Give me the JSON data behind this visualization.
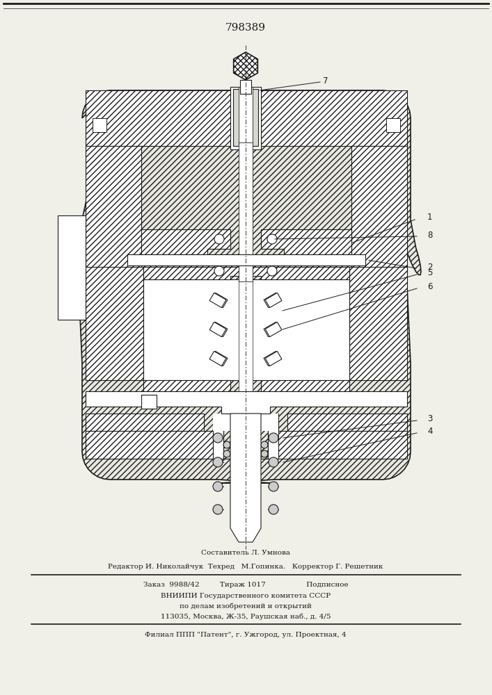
{
  "patent_number": "798389",
  "bg_color": "#f0efe8",
  "dc": "#1a1a1a",
  "footer_texts": [
    {
      "text": "Составитель Л. Умнова",
      "size": 7.5
    },
    {
      "text": "Редактор И. Николайчук  Техред   М.Гопинка.   Корректор Г. Решетник",
      "size": 7.5
    },
    {
      "text": "Заказ  9988/42         Тираж 1017                  Подписное",
      "size": 7.5
    },
    {
      "text": "ВНИИПИ Государственного комитета СССР",
      "size": 7.5
    },
    {
      "text": "по делам изобретений и открытий",
      "size": 7.5
    },
    {
      "text": "113035, Москва, Ж-35, Раушская наб., д. 4/5",
      "size": 7.5
    },
    {
      "text": "Филиал ППП \"Патент\", г. Ужгород, ул. Проектная, 4",
      "size": 7.5
    }
  ]
}
